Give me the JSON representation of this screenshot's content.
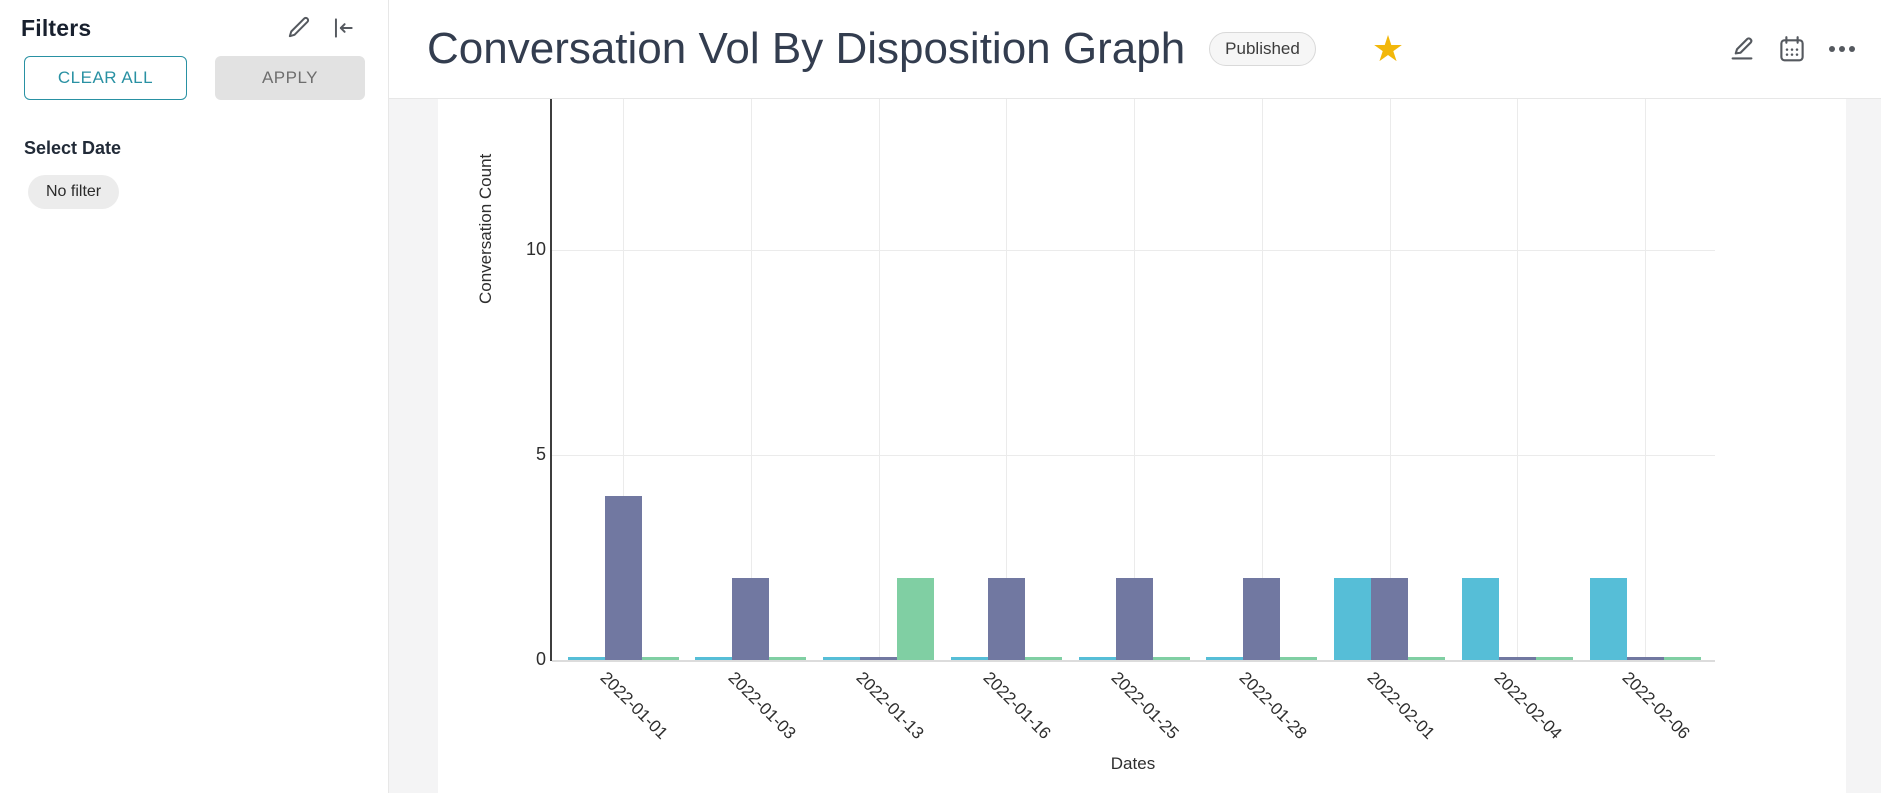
{
  "sidebar": {
    "title": "Filters",
    "edit_icon": "pencil-icon",
    "collapse_icon": "collapse-left-icon",
    "clear_all_label": "CLEAR ALL",
    "apply_label": "APPLY",
    "select_date_label": "Select Date",
    "date_filter_value": "No filter"
  },
  "header": {
    "title": "Conversation Vol By Disposition Graph",
    "status_badge": "Published",
    "favorite_icon": "star-icon",
    "action_icons": [
      "edit-icon",
      "calendar-icon",
      "more-icon"
    ]
  },
  "chart_data": {
    "type": "bar",
    "title": "Conversation Vol By Disposition Graph",
    "xlabel": "Dates",
    "ylabel": "Conversation Count",
    "categories": [
      "2022-01-01",
      "2022-01-03",
      "2022-01-13",
      "2022-01-16",
      "2022-01-25",
      "2022-01-28",
      "2022-02-01",
      "2022-02-04",
      "2022-02-06"
    ],
    "series": [
      {
        "name": "teal",
        "color": "#56BED7",
        "values": [
          0,
          0,
          0,
          0,
          0,
          0,
          2,
          2,
          2
        ]
      },
      {
        "name": "purple",
        "color": "#7178A1",
        "values": [
          4,
          2,
          0,
          2,
          2,
          2,
          2,
          0,
          0
        ]
      },
      {
        "name": "green",
        "color": "#80CFA3",
        "values": [
          0,
          0,
          2,
          0,
          0,
          0,
          0,
          0,
          0
        ]
      }
    ],
    "yticks": [
      0,
      5,
      10
    ],
    "ylim": [
      0,
      13.7
    ],
    "grid": true,
    "legend": "none",
    "zero_bars_shown_as_slivers": true
  },
  "colors": {
    "accent_teal": "#2991a3",
    "star_gold": "#f2b70a",
    "icon_gray": "#5a5f66",
    "title_text": "#333d4f",
    "page_bg": "#f4f4f5",
    "card_bg": "#ffffff",
    "border": "#e7e7e7",
    "axis_line": "#3d3d3d",
    "grid_line": "#ebebeb",
    "tick_text": "#2e2e2e"
  }
}
